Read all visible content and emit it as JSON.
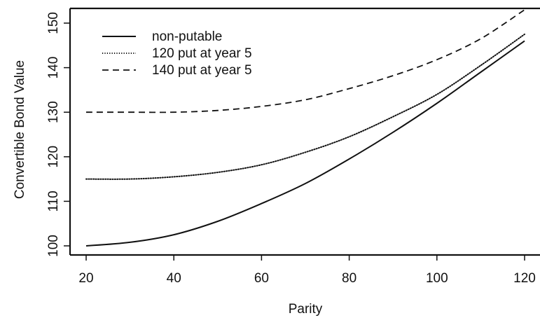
{
  "chart_data": {
    "type": "line",
    "xlabel": "Parity",
    "ylabel": "Convertible Bond Value",
    "xlim": [
      20,
      120
    ],
    "ylim": [
      100,
      150
    ],
    "xticks": [
      "20",
      "40",
      "60",
      "80",
      "100",
      "120"
    ],
    "yticks": [
      "100",
      "110",
      "120",
      "130",
      "140",
      "150"
    ],
    "grid": false,
    "legend_position": "top-left",
    "series": [
      {
        "name": "non-putable",
        "style": "solid",
        "x": [
          20,
          30,
          40,
          50,
          60,
          70,
          80,
          90,
          100,
          110,
          120
        ],
        "y": [
          100,
          100.8,
          102.5,
          105.5,
          109.5,
          114,
          119.5,
          125.5,
          132,
          139,
          146
        ]
      },
      {
        "name": "120 put at year 5",
        "style": "dotted",
        "x": [
          20,
          30,
          40,
          50,
          60,
          70,
          80,
          90,
          100,
          110,
          120
        ],
        "y": [
          115,
          115,
          115.5,
          116.5,
          118.2,
          121,
          124.5,
          129,
          134,
          140.5,
          147.5
        ]
      },
      {
        "name": "140 put at year 5",
        "style": "dashed",
        "x": [
          20,
          30,
          40,
          50,
          60,
          70,
          80,
          90,
          100,
          110,
          120
        ],
        "y": [
          130,
          130,
          130,
          130.4,
          131.3,
          132.8,
          135.3,
          138.2,
          141.8,
          146.5,
          153
        ]
      }
    ]
  }
}
